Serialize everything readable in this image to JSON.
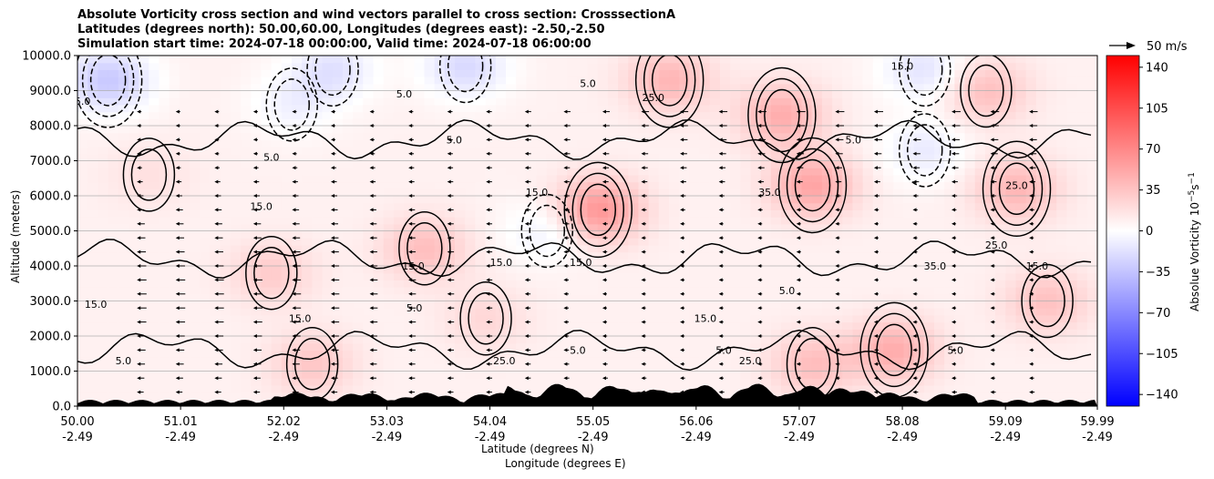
{
  "chart_data": {
    "type": "heatmap",
    "title_lines": [
      "Absolute Vorticity cross section and wind vectors parallel to cross section: CrosssectionA",
      "Latitudes (degrees north): 50.00,60.00, Longitudes (degrees east): -2.50,-2.50",
      "Simulation start time: 2024-07-18 00:00:00, Valid time: 2024-07-18 06:00:00"
    ],
    "xlabel_lines": [
      "Latitude (degrees N)",
      "Longitude (degrees E)"
    ],
    "ylabel": "Altitude (meters)",
    "x_ticks": [
      {
        "lat": "50.00",
        "lon": "-2.49"
      },
      {
        "lat": "51.01",
        "lon": "-2.49"
      },
      {
        "lat": "52.02",
        "lon": "-2.49"
      },
      {
        "lat": "53.03",
        "lon": "-2.49"
      },
      {
        "lat": "54.04",
        "lon": "-2.49"
      },
      {
        "lat": "55.05",
        "lon": "-2.49"
      },
      {
        "lat": "56.06",
        "lon": "-2.49"
      },
      {
        "lat": "57.07",
        "lon": "-2.49"
      },
      {
        "lat": "58.08",
        "lon": "-2.49"
      },
      {
        "lat": "59.09",
        "lon": "-2.49"
      },
      {
        "lat": "59.99",
        "lon": "-2.49"
      }
    ],
    "xlim": [
      50.0,
      59.99
    ],
    "y_ticks": [
      "0.0",
      "1000.0",
      "2000.0",
      "3000.0",
      "4000.0",
      "5000.0",
      "6000.0",
      "7000.0",
      "8000.0",
      "9000.0",
      "10000.0"
    ],
    "ylim": [
      0,
      10000
    ],
    "grid": "horizontal",
    "colorbar": {
      "label": "Absolue Vorticity 10⁻⁵s⁻¹",
      "label_main": "Absolue Vorticity 10",
      "label_sup": "−5",
      "label_unit": "s",
      "label_unit_sup": "−1",
      "ticks": [
        "140",
        "105",
        "70",
        "35",
        "0",
        "−35",
        "−70",
        "−105",
        "−140"
      ],
      "range": [
        -150,
        150
      ],
      "colormap": "bwr",
      "color_low": "#0000ff",
      "color_mid": "#ffffff",
      "color_high": "#ff0000"
    },
    "quiver_key": {
      "label": "50 m/s",
      "value": 50
    },
    "contour_levels": [
      "5.0",
      "15.0",
      "25.0",
      "35.0",
      "45.0"
    ],
    "contour_labels_visible": [
      {
        "text": "5.0",
        "lat": 50.45,
        "alt": 1200
      },
      {
        "text": "15.0",
        "lat": 50.18,
        "alt": 2800
      },
      {
        "text": "15.0",
        "lat": 52.18,
        "alt": 2400
      },
      {
        "text": "15.0",
        "lat": 53.29,
        "alt": 3900
      },
      {
        "text": "15.0",
        "lat": 54.15,
        "alt": 4000
      },
      {
        "text": "15.0",
        "lat": 54.93,
        "alt": 4000
      },
      {
        "text": "15.0",
        "lat": 54.5,
        "alt": 6000
      },
      {
        "text": "25.0",
        "lat": 55.64,
        "alt": 8700
      },
      {
        "text": "25.0",
        "lat": 54.18,
        "alt": 1200
      },
      {
        "text": "25.0",
        "lat": 56.59,
        "alt": 1200
      },
      {
        "text": "35.0",
        "lat": 56.78,
        "alt": 6000
      },
      {
        "text": "15.0",
        "lat": 58.08,
        "alt": 9600
      },
      {
        "text": "5.0",
        "lat": 56.33,
        "alt": 1500
      },
      {
        "text": "5.0",
        "lat": 54.9,
        "alt": 1500
      },
      {
        "text": "5.0",
        "lat": 50.05,
        "alt": 8600
      },
      {
        "text": "5.0",
        "lat": 51.9,
        "alt": 7000
      },
      {
        "text": "5.0",
        "lat": 53.69,
        "alt": 7500
      },
      {
        "text": "5.0",
        "lat": 55.0,
        "alt": 9100
      },
      {
        "text": "5.0",
        "lat": 53.2,
        "alt": 8800
      },
      {
        "text": "15.0",
        "lat": 51.8,
        "alt": 5600
      },
      {
        "text": "5.0",
        "lat": 57.6,
        "alt": 7500
      },
      {
        "text": "25.0",
        "lat": 59.2,
        "alt": 6200
      },
      {
        "text": "35.0",
        "lat": 58.4,
        "alt": 3900
      },
      {
        "text": "5.0",
        "lat": 58.6,
        "alt": 1500
      },
      {
        "text": "15.0",
        "lat": 59.4,
        "alt": 3900
      },
      {
        "text": "25.0",
        "lat": 59.0,
        "alt": 4500
      },
      {
        "text": "5.0",
        "lat": 56.95,
        "alt": 3200
      },
      {
        "text": "15.0",
        "lat": 56.15,
        "alt": 2400
      },
      {
        "text": "5.0",
        "lat": 53.3,
        "alt": 2700
      }
    ],
    "field_hotspots": [
      {
        "lat": 55.1,
        "alt": 5600,
        "value": 55
      },
      {
        "lat": 57.2,
        "alt": 6300,
        "value": 45
      },
      {
        "lat": 53.4,
        "alt": 4500,
        "value": 30
      },
      {
        "lat": 56.9,
        "alt": 8300,
        "value": 40
      },
      {
        "lat": 59.2,
        "alt": 6200,
        "value": 35
      },
      {
        "lat": 58.0,
        "alt": 1600,
        "value": 40
      },
      {
        "lat": 57.2,
        "alt": 1200,
        "value": 30
      },
      {
        "lat": 52.3,
        "alt": 1200,
        "value": 25
      },
      {
        "lat": 59.5,
        "alt": 3000,
        "value": 28
      },
      {
        "lat": 51.9,
        "alt": 3800,
        "value": 22
      },
      {
        "lat": 55.8,
        "alt": 9300,
        "value": 35
      },
      {
        "lat": 58.9,
        "alt": 9000,
        "value": 30
      },
      {
        "lat": 50.3,
        "alt": 9300,
        "value": -40
      },
      {
        "lat": 52.5,
        "alt": 9600,
        "value": -25
      },
      {
        "lat": 53.8,
        "alt": 9700,
        "value": -30
      },
      {
        "lat": 58.3,
        "alt": 7300,
        "value": -20
      },
      {
        "lat": 58.3,
        "alt": 9600,
        "value": -25
      },
      {
        "lat": 54.6,
        "alt": 5000,
        "value": -18
      },
      {
        "lat": 52.1,
        "alt": 8600,
        "value": -15
      },
      {
        "lat": 54.0,
        "alt": 2500,
        "value": 15
      },
      {
        "lat": 50.7,
        "alt": 6600,
        "value": 10
      }
    ]
  }
}
